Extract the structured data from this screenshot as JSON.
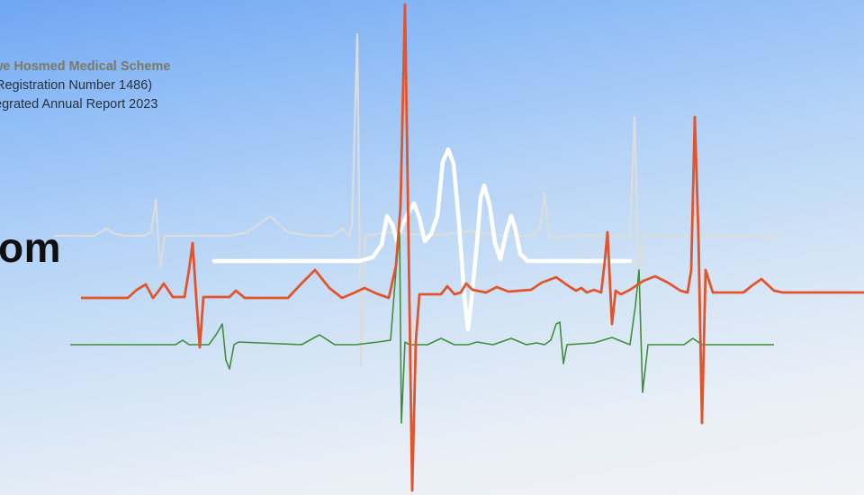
{
  "header": {
    "scheme_name": "we Hosmed Medical Scheme",
    "registration": "Registration Number 1486)",
    "report_title": "egrated Annual Report 2023"
  },
  "heading": {
    "text": "om"
  },
  "colors": {
    "background_top": "#6fa6f2",
    "background_bottom": "#f1f3f6",
    "scheme_name": "#7a7a66",
    "ecg_orange": "#e2552c",
    "ecg_green": "#3f8f3a",
    "ecg_gray": "#dcdcdc",
    "ecg_white": "#ffffff"
  },
  "decoration": {
    "icon": "ecg-heartbeat-lines"
  }
}
